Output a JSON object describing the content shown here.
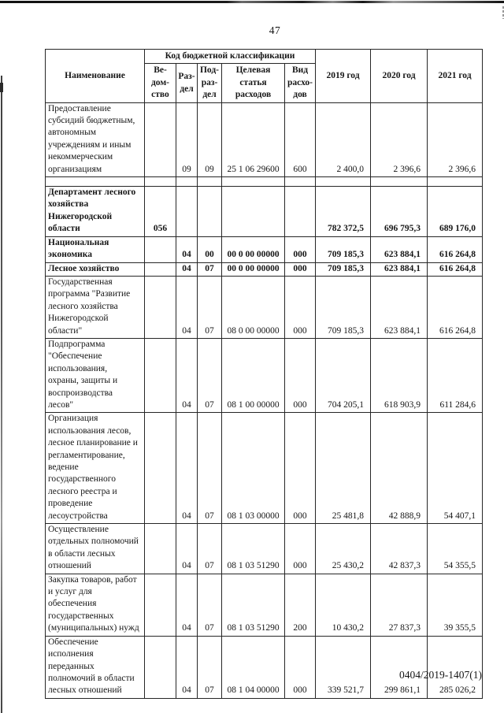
{
  "colors": {
    "background": "#ffffff",
    "text": "#161616",
    "table_border": "#262626",
    "scan_artifact": "#444444"
  },
  "page": {
    "number": "47",
    "footer": "0404/2019-1407(1)"
  },
  "table": {
    "header": {
      "name_label": "Наименование",
      "code_group_label": "Код бюджетной классификации",
      "code_columns": [
        "Ве-\nдом-\nство",
        "Раз-\nдел",
        "Под-\nраз-\nдел",
        "Целевая\nстатья\nрасходов",
        "Вид\nрасхо-\nдов"
      ],
      "year_columns": [
        "2019 год",
        "2020 год",
        "2021 год"
      ]
    },
    "rows": [
      {
        "name": "Предоставление\nсубсидий бюджетным,\nавтономным\nучреждениям и иным\nнекоммерческим\nорганизациям",
        "vedomstvo": "",
        "razdel": "09",
        "podrazdel": "09",
        "target": "25 1 06 29600",
        "vid": "600",
        "y2019": "2 400,0",
        "y2020": "2 396,6",
        "y2021": "2 396,6",
        "bold": false,
        "empty": false
      },
      {
        "name": "",
        "vedomstvo": "",
        "razdel": "",
        "podrazdel": "",
        "target": "",
        "vid": "",
        "y2019": "",
        "y2020": "",
        "y2021": "",
        "bold": false,
        "empty": true
      },
      {
        "name": "Департамент лесного\nхозяйства\nНижегородской\nобласти",
        "vedomstvo": "056",
        "razdel": "",
        "podrazdel": "",
        "target": "",
        "vid": "",
        "y2019": "782 372,5",
        "y2020": "696 795,3",
        "y2021": "689 176,0",
        "bold": true,
        "empty": false
      },
      {
        "name": "Национальная\nэкономика",
        "vedomstvo": "",
        "razdel": "04",
        "podrazdel": "00",
        "target": "00 0 00 00000",
        "vid": "000",
        "y2019": "709 185,3",
        "y2020": "623 884,1",
        "y2021": "616 264,8",
        "bold": true,
        "empty": false
      },
      {
        "name": "Лесное хозяйство",
        "vedomstvo": "",
        "razdel": "04",
        "podrazdel": "07",
        "target": "00 0 00 00000",
        "vid": "000",
        "y2019": "709 185,3",
        "y2020": "623 884,1",
        "y2021": "616 264,8",
        "bold": true,
        "empty": false
      },
      {
        "name": "Государственная\nпрограмма \"Развитие\nлесного хозяйства\nНижегородской\nобласти\"",
        "vedomstvo": "",
        "razdel": "04",
        "podrazdel": "07",
        "target": "08 0 00 00000",
        "vid": "000",
        "y2019": "709 185,3",
        "y2020": "623 884,1",
        "y2021": "616 264,8",
        "bold": false,
        "empty": false
      },
      {
        "name": "Подпрограмма\n\"Обеспечение\nиспользования,\nохраны, защиты и\nвоспроизводства\nлесов\"",
        "vedomstvo": "",
        "razdel": "04",
        "podrazdel": "07",
        "target": "08 1 00 00000",
        "vid": "000",
        "y2019": "704 205,1",
        "y2020": "618 903,9",
        "y2021": "611 284,6",
        "bold": false,
        "empty": false
      },
      {
        "name": "Организация\nиспользования лесов,\nлесное планирование и\nрегламентирование,\nведение\nгосударственного\nлесного реестра и\nпроведение\nлесоустройства",
        "vedomstvo": "",
        "razdel": "04",
        "podrazdel": "07",
        "target": "08 1 03 00000",
        "vid": "000",
        "y2019": "25 481,8",
        "y2020": "42 888,9",
        "y2021": "54 407,1",
        "bold": false,
        "empty": false
      },
      {
        "name": "Осуществление\nотдельных полномочий\nв области лесных\nотношений",
        "vedomstvo": "",
        "razdel": "04",
        "podrazdel": "07",
        "target": "08 1 03 51290",
        "vid": "000",
        "y2019": "25 430,2",
        "y2020": "42 837,3",
        "y2021": "54 355,5",
        "bold": false,
        "empty": false
      },
      {
        "name": "Закупка товаров, работ\nи услуг для\nобеспечения\nгосударственных\n(муниципальных) нужд",
        "vedomstvo": "",
        "razdel": "04",
        "podrazdel": "07",
        "target": "08 1 03 51290",
        "vid": "200",
        "y2019": "10 430,2",
        "y2020": "27 837,3",
        "y2021": "39 355,5",
        "bold": false,
        "empty": false
      },
      {
        "name": "Обеспечение\nисполнения\nпереданных\nполномочий в области\nлесных отношений",
        "vedomstvo": "",
        "razdel": "04",
        "podrazdel": "07",
        "target": "08 1 04 00000",
        "vid": "000",
        "y2019": "339 521,7",
        "y2020": "299 861,1",
        "y2021": "285 026,2",
        "bold": false,
        "empty": false
      }
    ]
  }
}
